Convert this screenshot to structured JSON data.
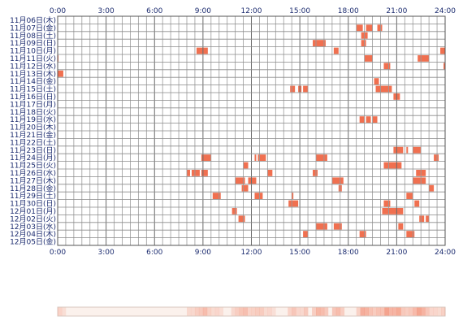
{
  "chart_data": {
    "type": "heatmap",
    "x_unit": "hour of day",
    "xlim": [
      0,
      24
    ],
    "x_ticks": [
      "0:00",
      "3:00",
      "6:00",
      "9:00",
      "12:00",
      "15:00",
      "18:00",
      "21:00",
      "24:00"
    ],
    "grid": true,
    "bar_color": "#f07050",
    "density_strip": true,
    "rows": [
      {
        "label": "11月06日(木)",
        "segments": []
      },
      {
        "label": "11月07日(金)",
        "segments": [
          [
            18.5,
            18.9
          ],
          [
            19.1,
            19.5
          ],
          [
            19.8,
            20.1
          ]
        ]
      },
      {
        "label": "11月08日(土)",
        "segments": [
          [
            18.8,
            19.2
          ]
        ]
      },
      {
        "label": "11月09日(日)",
        "segments": [
          [
            15.8,
            16.6
          ],
          [
            18.8,
            19.1
          ]
        ]
      },
      {
        "label": "11月10日(月)",
        "segments": [
          [
            8.6,
            9.3
          ],
          [
            17.1,
            17.4
          ],
          [
            23.7,
            24.0
          ]
        ]
      },
      {
        "label": "11月11日(火)",
        "segments": [
          [
            0.0,
            0.05
          ],
          [
            19.0,
            19.5
          ],
          [
            22.3,
            23.0
          ]
        ]
      },
      {
        "label": "11月12日(水)",
        "segments": [
          [
            20.2,
            20.6
          ],
          [
            23.9,
            24.0
          ]
        ]
      },
      {
        "label": "11月13日(木)",
        "segments": [
          [
            0.0,
            0.35
          ]
        ]
      },
      {
        "label": "11月14日(金)",
        "segments": [
          [
            19.6,
            19.9
          ]
        ]
      },
      {
        "label": "11月15日(土)",
        "segments": [
          [
            14.4,
            14.7
          ],
          [
            14.9,
            15.1
          ],
          [
            15.2,
            15.5
          ],
          [
            19.7,
            20.7
          ]
        ]
      },
      {
        "label": "11月16日(日)",
        "segments": [
          [
            20.8,
            21.2
          ]
        ]
      },
      {
        "label": "11月17日(月)",
        "segments": []
      },
      {
        "label": "11月18日(火)",
        "segments": []
      },
      {
        "label": "11月19日(水)",
        "segments": [
          [
            18.7,
            19.0
          ],
          [
            19.1,
            19.4
          ],
          [
            19.5,
            19.8
          ]
        ]
      },
      {
        "label": "11月20日(木)",
        "segments": []
      },
      {
        "label": "11月21日(金)",
        "segments": []
      },
      {
        "label": "11月22日(土)",
        "segments": []
      },
      {
        "label": "11月23日(日)",
        "segments": [
          [
            20.8,
            21.4
          ],
          [
            21.6,
            21.7
          ],
          [
            22.0,
            22.5
          ]
        ]
      },
      {
        "label": "11月24日(月)",
        "segments": [
          [
            8.9,
            9.5
          ],
          [
            12.2,
            12.3
          ],
          [
            12.4,
            12.9
          ],
          [
            16.0,
            16.7
          ],
          [
            23.3,
            23.6
          ]
        ]
      },
      {
        "label": "11月25日(火)",
        "segments": [
          [
            11.5,
            11.8
          ],
          [
            20.2,
            21.3
          ]
        ]
      },
      {
        "label": "11月26日(水)",
        "segments": [
          [
            8.0,
            8.2
          ],
          [
            8.3,
            8.8
          ],
          [
            8.9,
            9.3
          ],
          [
            13.0,
            13.3
          ],
          [
            15.8,
            16.1
          ],
          [
            22.2,
            22.8
          ]
        ]
      },
      {
        "label": "11月27日(木)",
        "segments": [
          [
            11.0,
            11.6
          ],
          [
            11.8,
            12.3
          ],
          [
            17.0,
            17.7
          ],
          [
            22.0,
            22.8
          ]
        ]
      },
      {
        "label": "11月28日(金)",
        "segments": [
          [
            11.4,
            11.8
          ],
          [
            17.4,
            17.6
          ],
          [
            23.0,
            23.3
          ]
        ]
      },
      {
        "label": "11月29日(土)",
        "segments": [
          [
            9.6,
            10.1
          ],
          [
            12.2,
            12.7
          ],
          [
            14.5,
            14.6
          ],
          [
            21.6,
            22.0
          ]
        ]
      },
      {
        "label": "11月30日(日)",
        "segments": [
          [
            14.3,
            14.9
          ],
          [
            20.2,
            20.6
          ],
          [
            22.1,
            22.4
          ]
        ]
      },
      {
        "label": "12月01日(月)",
        "segments": [
          [
            10.8,
            11.1
          ],
          [
            20.1,
            21.4
          ]
        ]
      },
      {
        "label": "12月02日(火)",
        "segments": [
          [
            11.2,
            11.6
          ],
          [
            22.4,
            22.7
          ],
          [
            22.8,
            23.0
          ]
        ]
      },
      {
        "label": "12月03日(水)",
        "segments": [
          [
            16.0,
            16.7
          ],
          [
            17.1,
            17.6
          ],
          [
            21.1,
            21.4
          ]
        ]
      },
      {
        "label": "12月04日(木)",
        "segments": [
          [
            15.2,
            15.5
          ],
          [
            18.7,
            19.1
          ],
          [
            21.6,
            22.1
          ]
        ]
      },
      {
        "label": "12月05日(金)",
        "segments": []
      }
    ]
  }
}
